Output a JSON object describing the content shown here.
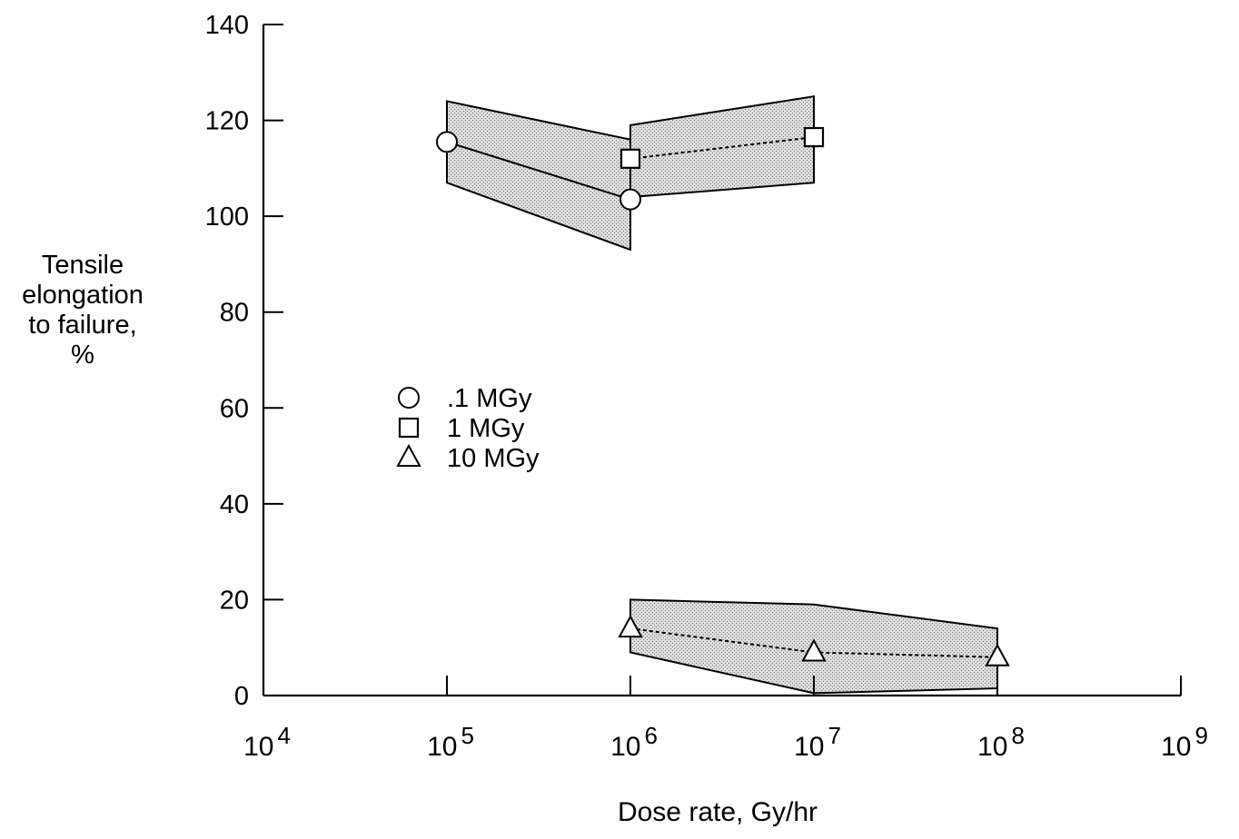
{
  "chart_data": {
    "type": "scatter",
    "title": "",
    "xlabel": "Dose rate, Gy/hr",
    "ylabel_lines": [
      "Tensile",
      "elongation",
      "to failure,",
      "%"
    ],
    "xscale": "log",
    "xlim": [
      10000,
      1000000000
    ],
    "ylim": [
      0,
      140
    ],
    "x_ticks": [
      {
        "base": "10",
        "exp": "4",
        "value": 10000
      },
      {
        "base": "10",
        "exp": "5",
        "value": 100000
      },
      {
        "base": "10",
        "exp": "6",
        "value": 1000000
      },
      {
        "base": "10",
        "exp": "7",
        "value": 10000000
      },
      {
        "base": "10",
        "exp": "8",
        "value": 100000000
      },
      {
        "base": "10",
        "exp": "9",
        "value": 1000000000
      }
    ],
    "y_ticks": [
      "0",
      "20",
      "40",
      "60",
      "80",
      "100",
      "120",
      "140"
    ],
    "grid": false,
    "legend_position": "center-left",
    "series": [
      {
        "name": ".1 MGy",
        "marker": "circle",
        "x": [
          100000,
          1000000
        ],
        "y": [
          115.5,
          103.5
        ],
        "band": {
          "x": [
            100000,
            1000000
          ],
          "upper": [
            124,
            116
          ],
          "lower": [
            107,
            93
          ]
        }
      },
      {
        "name": "1 MGy",
        "marker": "square",
        "x": [
          1000000,
          10000000
        ],
        "y": [
          112,
          116.5
        ],
        "band": {
          "x": [
            1000000,
            10000000
          ],
          "upper": [
            119,
            125
          ],
          "lower": [
            104,
            107
          ]
        }
      },
      {
        "name": "10 MGy",
        "marker": "triangle",
        "x": [
          1000000,
          10000000,
          100000000
        ],
        "y": [
          14,
          9,
          8
        ],
        "band": {
          "x": [
            1000000,
            10000000,
            100000000
          ],
          "upper": [
            20,
            19,
            14
          ],
          "lower": [
            9,
            0.5,
            1.5
          ]
        }
      }
    ]
  }
}
